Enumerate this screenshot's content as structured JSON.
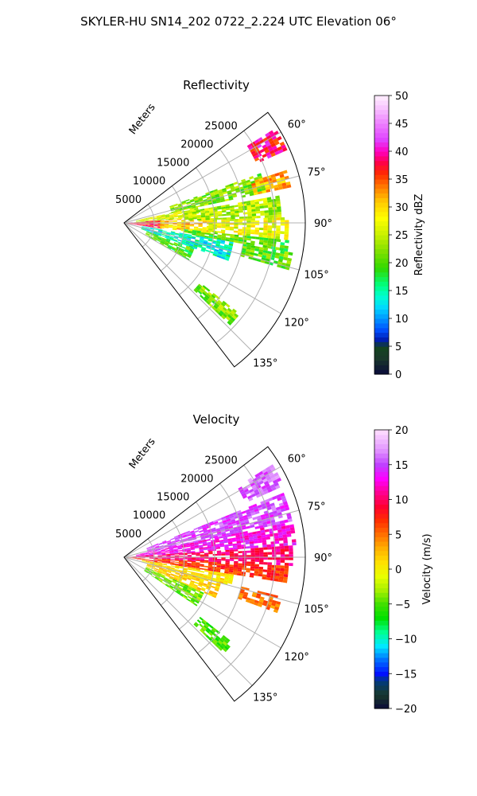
{
  "figure": {
    "title": "SKYLER-HU  SN14_202  0722_2.224 UTC Elevation 06°"
  },
  "chart_data": [
    {
      "type": "heatmap",
      "projection": "polar-sector",
      "title": "Reflectivity",
      "radial_label": "Meters",
      "radial_ticks": [
        5000,
        10000,
        15000,
        20000,
        25000
      ],
      "radial_tick_labels": [
        "5000",
        "10000",
        "15000",
        "20000",
        "25000"
      ],
      "radial_range": [
        0,
        30000
      ],
      "angle_range_deg": [
        52.5,
        142.5
      ],
      "angle_ticks": [
        60,
        75,
        90,
        105,
        120,
        135
      ],
      "angle_tick_labels": [
        "60°",
        "75°",
        "90°",
        "105°",
        "120°",
        "135°"
      ],
      "grid": true,
      "colorbar": {
        "label": "Reflectivity dBZ",
        "range": [
          0,
          50
        ],
        "ticks": [
          0,
          5,
          10,
          15,
          20,
          25,
          30,
          35,
          40,
          45,
          50
        ],
        "tick_labels": [
          "0",
          "5",
          "10",
          "15",
          "20",
          "25",
          "30",
          "35",
          "40",
          "45",
          "50"
        ],
        "colormap": "HomeyerRainbow"
      },
      "echo_regions": [
        {
          "az": [
            86,
            99
          ],
          "r": [
            0,
            6000
          ],
          "v": 37
        },
        {
          "az": [
            86,
            98
          ],
          "r": [
            6000,
            15000
          ],
          "v": 30
        },
        {
          "az": [
            78,
            86
          ],
          "r": [
            2000,
            12000
          ],
          "v": 26
        },
        {
          "az": [
            70,
            78
          ],
          "r": [
            8000,
            24000
          ],
          "v": 22
        },
        {
          "az": [
            80,
            88
          ],
          "r": [
            10000,
            26000
          ],
          "v": 24
        },
        {
          "az": [
            88,
            96
          ],
          "r": [
            14000,
            27000
          ],
          "v": 27
        },
        {
          "az": [
            96,
            100
          ],
          "r": [
            10000,
            27000
          ],
          "v": 20
        },
        {
          "az": [
            100,
            110
          ],
          "r": [
            3000,
            18000
          ],
          "v": 14
        },
        {
          "az": [
            110,
            120
          ],
          "r": [
            4000,
            12000
          ],
          "v": 20
        },
        {
          "az": [
            58,
            66
          ],
          "r": [
            24000,
            29000
          ],
          "v": 38
        },
        {
          "az": [
            72,
            78
          ],
          "r": [
            22000,
            28000
          ],
          "v": 32
        },
        {
          "az": [
            100,
            106
          ],
          "r": [
            20000,
            28000
          ],
          "v": 21
        },
        {
          "az": [
            128,
            134
          ],
          "r": [
            16000,
            24000
          ],
          "v": 22
        }
      ]
    },
    {
      "type": "heatmap",
      "projection": "polar-sector",
      "title": "Velocity",
      "radial_label": "Meters",
      "radial_ticks": [
        5000,
        10000,
        15000,
        20000,
        25000
      ],
      "radial_tick_labels": [
        "5000",
        "10000",
        "15000",
        "20000",
        "25000"
      ],
      "radial_range": [
        0,
        30000
      ],
      "angle_range_deg": [
        52.5,
        142.5
      ],
      "angle_ticks": [
        60,
        75,
        90,
        105,
        120,
        135
      ],
      "angle_tick_labels": [
        "60°",
        "75°",
        "90°",
        "105°",
        "120°",
        "135°"
      ],
      "grid": true,
      "colorbar": {
        "label": "Velocity (m/s)",
        "range": [
          -20,
          20
        ],
        "ticks": [
          -20,
          -15,
          -10,
          -5,
          0,
          5,
          10,
          15,
          20
        ],
        "tick_labels": [
          "−20",
          "−15",
          "−10",
          "−5",
          "0",
          "5",
          "10",
          "15",
          "20"
        ],
        "colormap": "NWSVel"
      },
      "echo_regions": [
        {
          "az": [
            58,
            66
          ],
          "r": [
            22000,
            29000
          ],
          "v": 16
        },
        {
          "az": [
            68,
            78
          ],
          "r": [
            4000,
            28000
          ],
          "v": 15
        },
        {
          "az": [
            78,
            86
          ],
          "r": [
            2000,
            28000
          ],
          "v": 13
        },
        {
          "az": [
            86,
            93
          ],
          "r": [
            0,
            28000
          ],
          "v": 10
        },
        {
          "az": [
            93,
            99
          ],
          "r": [
            0,
            27000
          ],
          "v": 7
        },
        {
          "az": [
            99,
            105
          ],
          "r": [
            3000,
            18000
          ],
          "v": 1
        },
        {
          "az": [
            104,
            110
          ],
          "r": [
            20000,
            27000
          ],
          "v": 5
        },
        {
          "az": [
            105,
            114
          ],
          "r": [
            4000,
            16000
          ],
          "v": 2
        },
        {
          "az": [
            114,
            124
          ],
          "r": [
            4000,
            14000
          ],
          "v": -4
        },
        {
          "az": [
            128,
            134
          ],
          "r": [
            16000,
            23000
          ],
          "v": -5
        }
      ]
    }
  ]
}
